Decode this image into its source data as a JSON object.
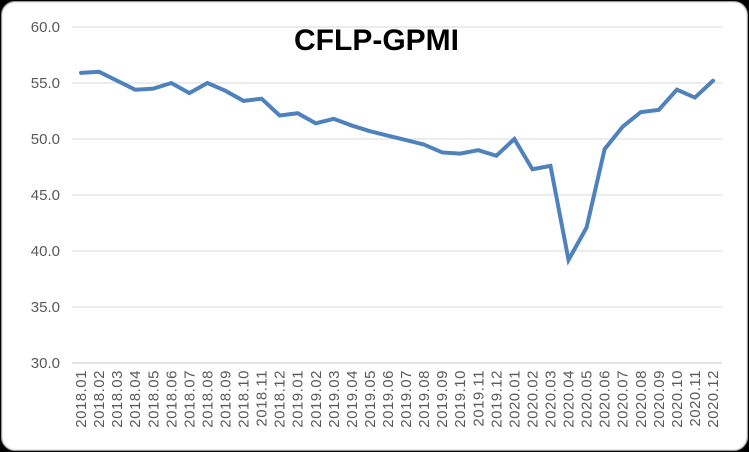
{
  "window": {
    "background_color": "#000000",
    "card_background": "#ffffff",
    "card_border_color": "#9d9d9d"
  },
  "chart_data": {
    "type": "line",
    "title": "CFLP-GPMI",
    "categories": [
      "2018.01",
      "2018.02",
      "2018.03",
      "2018.04",
      "2018.05",
      "2018.06",
      "2018.07",
      "2018.08",
      "2018.09",
      "2018.10",
      "2018.11",
      "2018.12",
      "2019.01",
      "2019.02",
      "2019.03",
      "2019.04",
      "2019.05",
      "2019.06",
      "2019.07",
      "2019.08",
      "2019.09",
      "2019.10",
      "2019.11",
      "2019.12",
      "2020.01",
      "2020.02",
      "2020.03",
      "2020.04",
      "2020.05",
      "2020.06",
      "2020.07",
      "2020.08",
      "2020.09",
      "2020.10",
      "2020.11",
      "2020.12"
    ],
    "series": [
      {
        "name": "CFLP-GPMI",
        "color": "#4F81BD",
        "values": [
          55.9,
          56.0,
          55.2,
          54.4,
          54.5,
          55.0,
          54.1,
          55.0,
          54.3,
          53.4,
          53.6,
          52.1,
          52.3,
          51.4,
          51.8,
          51.2,
          50.7,
          50.3,
          49.9,
          49.5,
          48.8,
          48.7,
          49.0,
          48.5,
          50.0,
          47.3,
          47.6,
          39.2,
          42.1,
          49.1,
          51.1,
          52.4,
          52.6,
          54.4,
          53.7,
          55.2
        ]
      }
    ],
    "ylim": [
      30,
      60
    ],
    "ytick_step": 5,
    "ytick_labels": [
      "60.0",
      "55.0",
      "50.0",
      "45.0",
      "40.0",
      "35.0",
      "30.0"
    ],
    "xlabel": "",
    "ylabel": "",
    "grid": "horizontal-only",
    "gridline_color": "#D9D9D9",
    "axis_line_color": "#C6C6C6",
    "axis_label_color": "#595959",
    "legend": "none",
    "x_label_rotation": -90
  }
}
